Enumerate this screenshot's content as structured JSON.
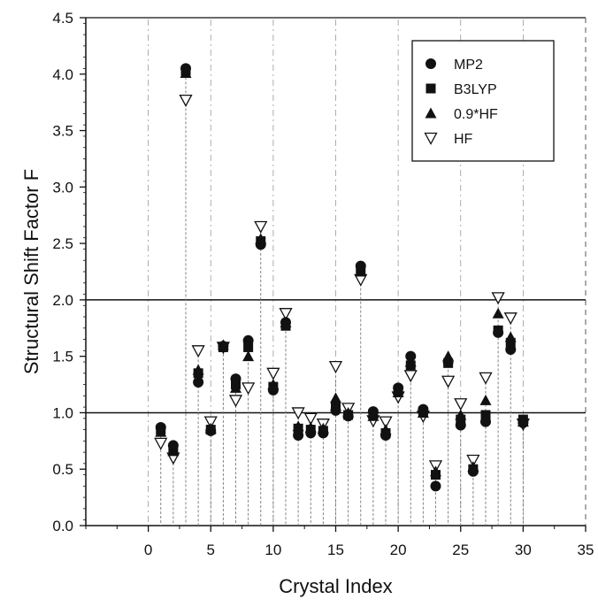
{
  "chart_data": {
    "type": "scatter",
    "xlabel": "Crystal Index",
    "ylabel": "Structural Shift Factor F",
    "xlim": [
      -5,
      35
    ],
    "ylim": [
      0.0,
      4.5
    ],
    "xticks": [
      "0",
      "5",
      "10",
      "15",
      "20",
      "25",
      "30",
      "35"
    ],
    "xtick_values": [
      0,
      5,
      10,
      15,
      20,
      25,
      30,
      35
    ],
    "yticks": [
      "0.0",
      "0.5",
      "1.0",
      "1.5",
      "2.0",
      "2.5",
      "3.0",
      "3.5",
      "4.0",
      "4.5"
    ],
    "ytick_values": [
      0.0,
      0.5,
      1.0,
      1.5,
      2.0,
      2.5,
      3.0,
      3.5,
      4.0,
      4.5
    ],
    "reference_lines": [
      1.0,
      2.0
    ],
    "legend_position": "top-right",
    "x": [
      1,
      2,
      3,
      4,
      5,
      6,
      7,
      8,
      9,
      10,
      11,
      12,
      13,
      14,
      15,
      16,
      17,
      18,
      19,
      20,
      21,
      22,
      23,
      24,
      25,
      26,
      27,
      28,
      29,
      30
    ],
    "series": [
      {
        "name": "MP2",
        "marker": "circle",
        "values": [
          0.87,
          0.71,
          4.05,
          1.27,
          0.84,
          1.59,
          1.3,
          1.64,
          2.49,
          1.2,
          1.8,
          0.8,
          0.82,
          0.82,
          1.02,
          0.97,
          2.3,
          1.01,
          0.8,
          1.22,
          1.5,
          1.03,
          0.35,
          1.45,
          0.89,
          0.48,
          0.92,
          1.71,
          1.56,
          0.91
        ]
      },
      {
        "name": "B3LYP",
        "marker": "square",
        "values": [
          0.85,
          0.68,
          4.03,
          1.35,
          0.85,
          1.58,
          1.25,
          1.58,
          2.52,
          1.23,
          1.77,
          0.86,
          0.85,
          0.84,
          1.06,
          0.98,
          2.27,
          0.99,
          0.82,
          1.2,
          1.42,
          1.01,
          0.45,
          1.44,
          0.94,
          0.5,
          0.98,
          1.73,
          1.62,
          0.94
        ]
      },
      {
        "name": "0.9*HF",
        "marker": "triangle-up",
        "values": [
          0.83,
          0.66,
          4.01,
          1.38,
          0.86,
          1.6,
          1.22,
          1.5,
          2.54,
          1.25,
          1.8,
          0.88,
          0.87,
          0.86,
          1.13,
          1.0,
          2.25,
          0.97,
          0.85,
          1.18,
          1.45,
          1.0,
          0.48,
          1.5,
          0.98,
          0.52,
          1.11,
          1.88,
          1.67,
          0.92
        ]
      },
      {
        "name": "HF",
        "marker": "triangle-down",
        "values": [
          0.73,
          0.6,
          3.77,
          1.55,
          0.92,
          1.58,
          1.11,
          1.22,
          2.65,
          1.35,
          1.88,
          1.0,
          0.95,
          0.9,
          1.41,
          1.04,
          2.18,
          0.93,
          0.92,
          1.14,
          1.33,
          0.97,
          0.53,
          1.28,
          1.08,
          0.58,
          1.31,
          2.02,
          1.84,
          0.9
        ]
      }
    ]
  }
}
